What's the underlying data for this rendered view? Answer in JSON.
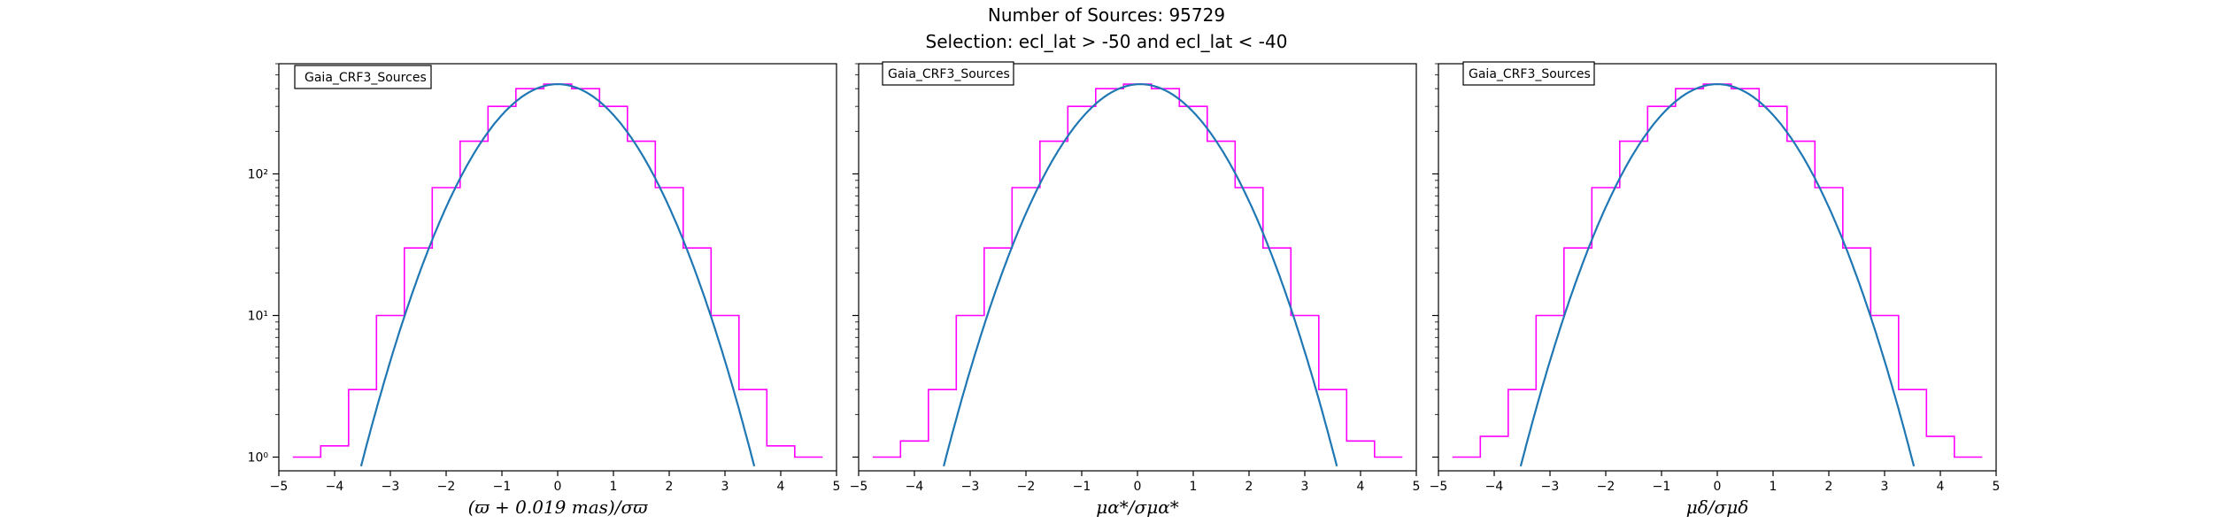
{
  "figure": {
    "title_line1": "Number of Sources: 95729",
    "title_line2": "Selection: ecl_lat > -50 and ecl_lat < -40"
  },
  "colors": {
    "histogram": "#ff00ff",
    "fit_line": "#1f77b4",
    "axes": "#000000",
    "background": "#ffffff"
  },
  "chart_data": [
    {
      "type": "line",
      "legend": "Gaia_CRF3_Sources",
      "legend_position": "upper-left",
      "xlabel": "(ϖ + 0.019 mas)/σϖ",
      "ylabel": "",
      "xlim": [
        -5,
        5
      ],
      "ylim": [
        0.8,
        600
      ],
      "yscale": "log",
      "xticks": [
        "−5",
        "−4",
        "−3",
        "−2",
        "−1",
        "0",
        "1",
        "2",
        "3",
        "4",
        "5"
      ],
      "yticks": [
        {
          "value": 1,
          "label": "10⁰"
        },
        {
          "value": 10,
          "label": "10¹"
        },
        {
          "value": 100,
          "label": "10²"
        }
      ],
      "grid": false,
      "series": [
        {
          "kind": "histogram",
          "x": [
            -4.5,
            -4.0,
            -3.5,
            -3.0,
            -2.5,
            -2.0,
            -1.5,
            -1.0,
            -0.5,
            0.0,
            0.5,
            1.0,
            1.5,
            2.0,
            2.5,
            3.0,
            3.5,
            4.0,
            4.5
          ],
          "y": [
            1,
            1.2,
            3,
            10,
            30,
            80,
            170,
            300,
            400,
            430,
            400,
            300,
            170,
            80,
            30,
            10,
            3,
            1.2,
            1
          ]
        },
        {
          "kind": "gaussian_fit",
          "mean": 0.0,
          "sigma": 1.0,
          "peak": 430
        }
      ]
    },
    {
      "type": "line",
      "legend": "Gaia_CRF3_Sources",
      "legend_position": "upper-left",
      "xlabel": "μα*/σμα*",
      "ylabel": "",
      "xlim": [
        -5,
        5
      ],
      "ylim": [
        0.8,
        600
      ],
      "yscale": "log",
      "xticks": [
        "−5",
        "−4",
        "−3",
        "−2",
        "−1",
        "0",
        "1",
        "2",
        "3",
        "4",
        "5"
      ],
      "yticks": [
        {
          "value": 1,
          "label": ""
        },
        {
          "value": 10,
          "label": ""
        },
        {
          "value": 100,
          "label": ""
        }
      ],
      "grid": false,
      "series": [
        {
          "kind": "histogram",
          "x": [
            -4.5,
            -4.0,
            -3.5,
            -3.0,
            -2.5,
            -2.0,
            -1.5,
            -1.0,
            -0.5,
            0.0,
            0.5,
            1.0,
            1.5,
            2.0,
            2.5,
            3.0,
            3.5,
            4.0,
            4.5
          ],
          "y": [
            1,
            1.3,
            3,
            10,
            30,
            80,
            170,
            300,
            400,
            430,
            400,
            300,
            170,
            80,
            30,
            10,
            3,
            1.3,
            1
          ]
        },
        {
          "kind": "gaussian_fit",
          "mean": 0.05,
          "sigma": 1.0,
          "peak": 430
        }
      ]
    },
    {
      "type": "line",
      "legend": "Gaia_CRF3_Sources",
      "legend_position": "upper-left",
      "xlabel": "μδ/σμδ",
      "ylabel": "",
      "xlim": [
        -5,
        5
      ],
      "ylim": [
        0.8,
        600
      ],
      "yscale": "log",
      "xticks": [
        "−5",
        "−4",
        "−3",
        "−2",
        "−1",
        "0",
        "1",
        "2",
        "3",
        "4",
        "5"
      ],
      "yticks": [
        {
          "value": 1,
          "label": ""
        },
        {
          "value": 10,
          "label": ""
        },
        {
          "value": 100,
          "label": ""
        }
      ],
      "grid": false,
      "series": [
        {
          "kind": "histogram",
          "x": [
            -4.5,
            -4.0,
            -3.5,
            -3.0,
            -2.5,
            -2.0,
            -1.5,
            -1.0,
            -0.5,
            0.0,
            0.5,
            1.0,
            1.5,
            2.0,
            2.5,
            3.0,
            3.5,
            4.0,
            4.5
          ],
          "y": [
            1,
            1.4,
            3,
            10,
            30,
            80,
            170,
            300,
            400,
            430,
            400,
            300,
            170,
            80,
            30,
            10,
            3,
            1.4,
            1
          ]
        },
        {
          "kind": "gaussian_fit",
          "mean": 0.0,
          "sigma": 1.0,
          "peak": 430
        }
      ]
    }
  ]
}
